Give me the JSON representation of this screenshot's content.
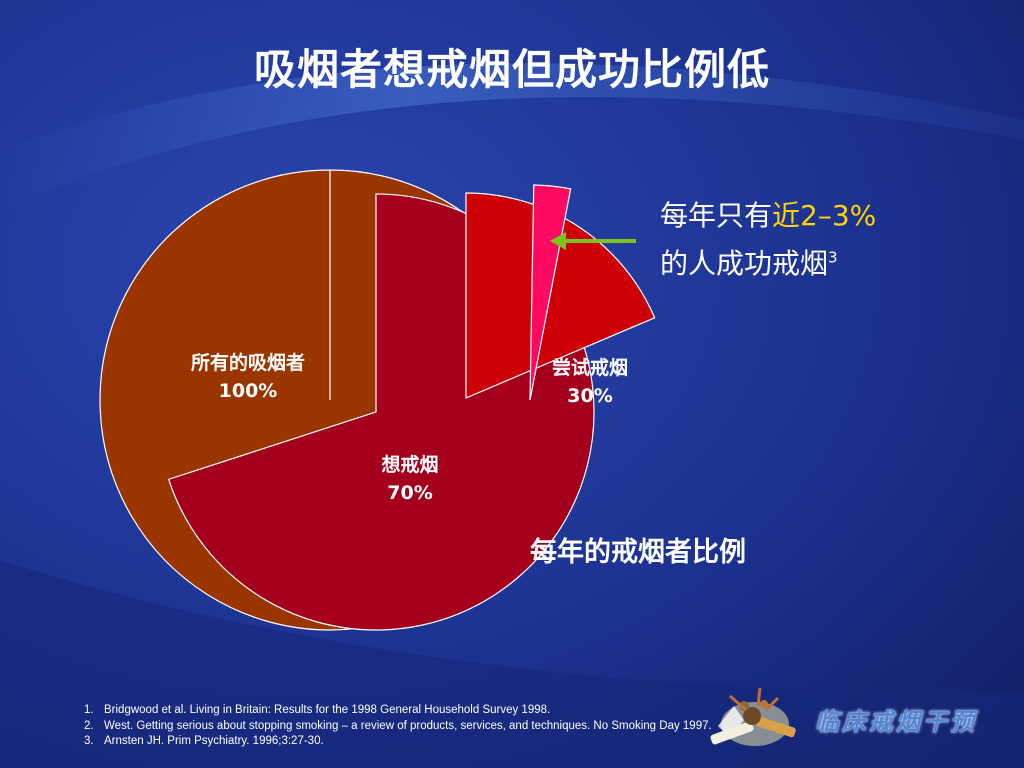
{
  "title": "吸烟者想戒烟但成功比例低",
  "chart_data": {
    "type": "pie",
    "slices": [
      {
        "label": "所有的吸烟者",
        "value_text": "100%",
        "value": 100,
        "color": "#9a3500"
      },
      {
        "label": "想戒烟",
        "value_text": "70%",
        "value": 70,
        "color": "#a4001e"
      },
      {
        "label": "尝试戒烟",
        "value_text": "30%",
        "value": 30,
        "color": "#cc0006"
      },
      {
        "label": "",
        "value_text": "",
        "value": 2.5,
        "color": "#ff0a63"
      }
    ]
  },
  "callout": {
    "line1_prefix": "每年只有",
    "line1_highlight": "近2–3%",
    "line2": "的人成功戒烟",
    "line2_sup": "3",
    "highlight_color": "#ffd400",
    "arrow_color": "#7ec31c"
  },
  "caption": "每年的戒烟者比例",
  "references": [
    {
      "num": "1.",
      "text": "Bridgwood et al. Living in Britain: Results for the 1998 General Household Survey 1998."
    },
    {
      "num": "2.",
      "text": "West. Getting serious about stopping smoking – a review of products, services, and techniques. No Smoking Day 1997."
    },
    {
      "num": "3.",
      "text": "Arnsten JH. Prim Psychiatry. 1996;3:27-30."
    }
  ],
  "brand": {
    "text": "临床戒烟干预",
    "icon": "broken-cigarette-logo"
  },
  "colors": {
    "background": "#1b2f86",
    "accent": "#ffd400"
  }
}
